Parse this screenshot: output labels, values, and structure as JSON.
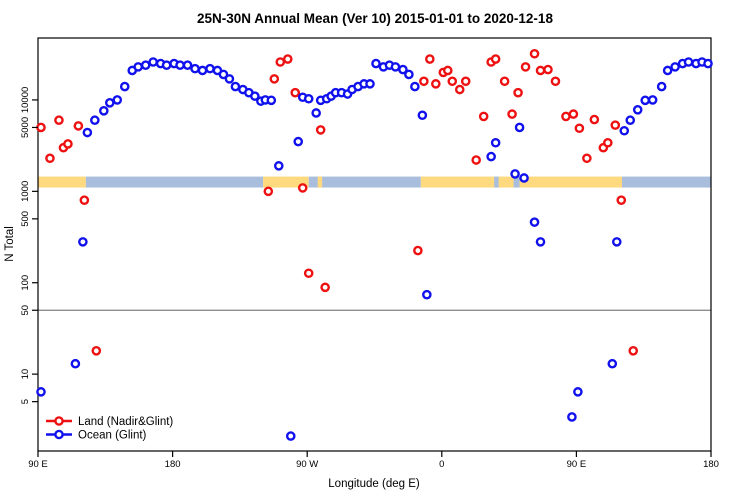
{
  "chart_data": {
    "type": "scatter",
    "title": "25N-30N Annual Mean (Ver 10)   2015-01-01 to 2020-12-18",
    "xlabel": "Longitude (deg E)",
    "ylabel": "N Total",
    "y_scale": "log10",
    "ylim": [
      1.4,
      47600
    ],
    "xlim_axis_degrees": [
      90,
      540
    ],
    "x_ticks": [
      {
        "value": 90,
        "label": "90 E"
      },
      {
        "value": 180,
        "label": "180"
      },
      {
        "value": 270,
        "label": "90 W"
      },
      {
        "value": 360,
        "label": "0"
      },
      {
        "value": 450,
        "label": "90 E"
      },
      {
        "value": 540,
        "label": "180"
      }
    ],
    "y_ticks": [
      {
        "value": 5,
        "label": "5"
      },
      {
        "value": 10,
        "label": "10"
      },
      {
        "value": 50,
        "label": "50"
      },
      {
        "value": 100,
        "label": "100"
      },
      {
        "value": 500,
        "label": "500"
      },
      {
        "value": 1000,
        "label": "1000"
      },
      {
        "value": 5000,
        "label": "5000"
      },
      {
        "value": 10000,
        "label": "10000"
      }
    ],
    "reference_line": {
      "y_value": 50,
      "color": "#808080"
    },
    "surface_band": {
      "value_range": [
        1100,
        1450
      ],
      "colors": {
        "land": "#FFD97E",
        "ocean": "#A8BEDC"
      },
      "segments": [
        {
          "from": 90,
          "to": 122,
          "surface": "land"
        },
        {
          "from": 122,
          "to": 240.5,
          "surface": "ocean"
        },
        {
          "from": 240.5,
          "to": 271,
          "surface": "land"
        },
        {
          "from": 271,
          "to": 346,
          "surface": "ocean"
        },
        {
          "from": 277,
          "to": 280,
          "surface": "land"
        },
        {
          "from": 346,
          "to": 480.5,
          "surface": "land"
        },
        {
          "from": 395,
          "to": 398,
          "surface": "ocean"
        },
        {
          "from": 408,
          "to": 412,
          "surface": "ocean"
        },
        {
          "from": 480.5,
          "to": 540,
          "surface": "ocean"
        }
      ]
    },
    "legend_position": "bottom-left",
    "series": [
      {
        "name": "Land (Nadir&Glint)",
        "color": "#EE1111",
        "points": [
          [
            92,
            5000
          ],
          [
            104,
            6000
          ],
          [
            98,
            2300
          ],
          [
            107,
            3000
          ],
          [
            110,
            3300
          ],
          [
            117,
            5200
          ],
          [
            121,
            800
          ],
          [
            129,
            18
          ],
          [
            244,
            1000
          ],
          [
            248,
            17000
          ],
          [
            252,
            26000
          ],
          [
            257,
            28000
          ],
          [
            262,
            12000
          ],
          [
            267,
            1090
          ],
          [
            271,
            127
          ],
          [
            279,
            4700
          ],
          [
            282,
            89
          ],
          [
            344,
            225
          ],
          [
            348,
            16000
          ],
          [
            352,
            28000
          ],
          [
            356,
            15000
          ],
          [
            361,
            20000
          ],
          [
            364,
            21000
          ],
          [
            367,
            16000
          ],
          [
            372,
            13000
          ],
          [
            376,
            16000
          ],
          [
            383,
            2200
          ],
          [
            388,
            6600
          ],
          [
            393,
            26000
          ],
          [
            396,
            28000
          ],
          [
            402,
            16000
          ],
          [
            407,
            7000
          ],
          [
            411,
            12000
          ],
          [
            416,
            23000
          ],
          [
            422,
            32000
          ],
          [
            426,
            21000
          ],
          [
            431,
            21500
          ],
          [
            436,
            16000
          ],
          [
            443,
            6600
          ],
          [
            448,
            7000
          ],
          [
            452,
            4900
          ],
          [
            457,
            2300
          ],
          [
            462,
            6100
          ],
          [
            468,
            3000
          ],
          [
            471,
            3400
          ],
          [
            476,
            5300
          ],
          [
            480,
            800
          ],
          [
            488,
            18
          ]
        ]
      },
      {
        "name": "Ocean (Glint)",
        "color": "#1111EE",
        "points": [
          [
            92,
            6.4
          ],
          [
            115,
            13
          ],
          [
            120,
            280
          ],
          [
            123,
            4400
          ],
          [
            128,
            6000
          ],
          [
            134,
            7600
          ],
          [
            138,
            9300
          ],
          [
            143,
            10000
          ],
          [
            148,
            14000
          ],
          [
            153,
            21000
          ],
          [
            157,
            23000
          ],
          [
            162,
            24000
          ],
          [
            167,
            26000
          ],
          [
            172,
            25000
          ],
          [
            176,
            24000
          ],
          [
            181,
            25000
          ],
          [
            185,
            24000
          ],
          [
            190,
            24000
          ],
          [
            195,
            22000
          ],
          [
            200,
            21000
          ],
          [
            205,
            22000
          ],
          [
            210,
            21000
          ],
          [
            214,
            19000
          ],
          [
            218,
            17000
          ],
          [
            222,
            14000
          ],
          [
            227,
            13000
          ],
          [
            231,
            12000
          ],
          [
            235,
            11000
          ],
          [
            239,
            9700
          ],
          [
            242,
            10000
          ],
          [
            246,
            9900
          ],
          [
            251,
            1900
          ],
          [
            259,
            2.1
          ],
          [
            264,
            3500
          ],
          [
            267,
            10700
          ],
          [
            271,
            10300
          ],
          [
            276,
            7200
          ],
          [
            279,
            9900
          ],
          [
            283,
            10300
          ],
          [
            286,
            11000
          ],
          [
            289,
            12000
          ],
          [
            293,
            12000
          ],
          [
            297,
            11600
          ],
          [
            300,
            13000
          ],
          [
            304,
            14000
          ],
          [
            308,
            15000
          ],
          [
            312,
            15000
          ],
          [
            316,
            25000
          ],
          [
            321,
            23000
          ],
          [
            325,
            24000
          ],
          [
            329,
            23000
          ],
          [
            334,
            21500
          ],
          [
            338,
            19000
          ],
          [
            342,
            14000
          ],
          [
            347,
            6800
          ],
          [
            350,
            74
          ],
          [
            393,
            2400
          ],
          [
            396,
            3400
          ],
          [
            409,
            1550
          ],
          [
            412,
            5000
          ],
          [
            415,
            1400
          ],
          [
            422,
            460
          ],
          [
            426,
            280
          ],
          [
            447,
            3.4
          ],
          [
            451,
            6.4
          ],
          [
            474,
            13
          ],
          [
            477,
            280
          ],
          [
            482,
            4600
          ],
          [
            486,
            6000
          ],
          [
            491,
            7800
          ],
          [
            496,
            9900
          ],
          [
            501,
            10000
          ],
          [
            507,
            14000
          ],
          [
            511,
            21000
          ],
          [
            516,
            23000
          ],
          [
            521,
            25000
          ],
          [
            525,
            26000
          ],
          [
            530,
            25000
          ],
          [
            534,
            26000
          ],
          [
            538,
            25000
          ]
        ]
      }
    ]
  }
}
